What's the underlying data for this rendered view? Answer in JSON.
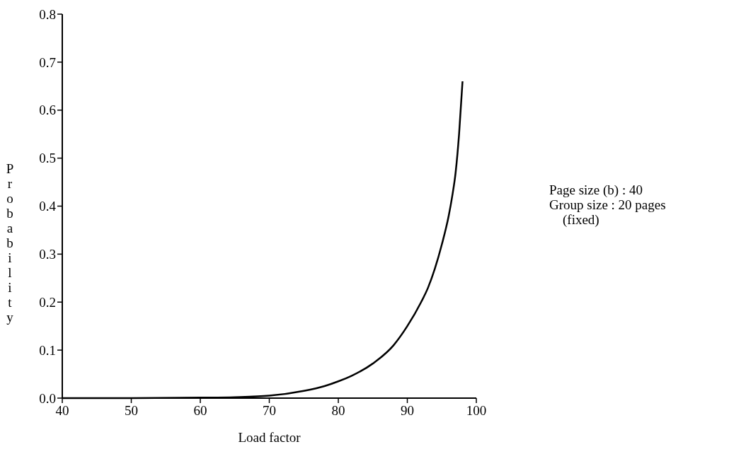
{
  "chart_data": {
    "type": "line",
    "xlabel": "Load factor",
    "ylabel": "Probability",
    "annotations": [
      "Page size (b) : 40",
      "Group size : 20 pages",
      "(fixed)"
    ],
    "x": [
      40,
      50,
      60,
      65,
      70,
      75,
      78,
      80,
      82,
      85,
      88,
      90,
      92,
      93,
      94,
      95,
      96,
      96.5,
      97,
      97.5,
      98
    ],
    "series": [
      {
        "color": "#000000",
        "values": [
          0,
          0,
          0.001,
          0.002,
          0.005,
          0.015,
          0.025,
          0.035,
          0.047,
          0.072,
          0.11,
          0.15,
          0.2,
          0.23,
          0.27,
          0.32,
          0.38,
          0.42,
          0.47,
          0.55,
          0.66
        ]
      }
    ],
    "xlim": [
      40,
      100
    ],
    "xticks": [
      40,
      50,
      60,
      70,
      80,
      90,
      100
    ],
    "ylim": [
      0,
      0.8
    ],
    "yticks": [
      {
        "value": 0,
        "label": "0.0"
      },
      {
        "value": 0.1,
        "label": "0.1"
      },
      {
        "value": 0.2,
        "label": "0.2"
      },
      {
        "value": 0.3,
        "label": "0.3"
      },
      {
        "value": 0.4,
        "label": "0.4"
      },
      {
        "value": 0.5,
        "label": "0.5"
      },
      {
        "value": 0.6,
        "label": "0.6"
      },
      {
        "value": 0.7,
        "label": "0.7"
      },
      {
        "value": 0.8,
        "label": "0.8"
      }
    ],
    "grid": false,
    "marker": "none",
    "line_style": "solid"
  }
}
